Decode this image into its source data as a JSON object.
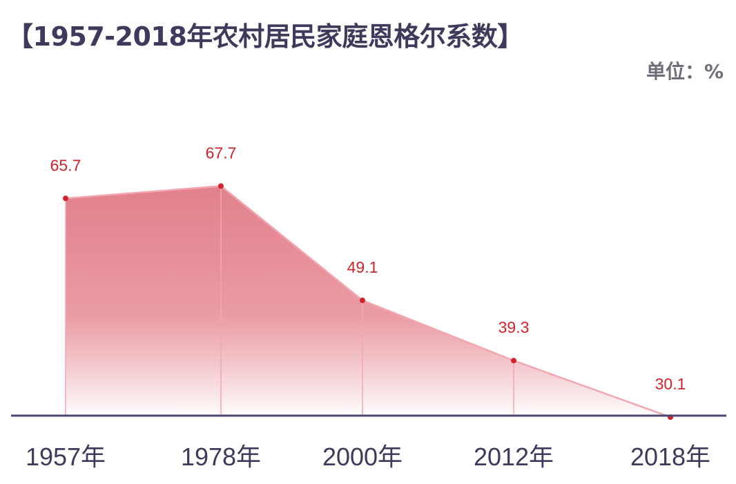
{
  "title": "【1957-2018年农村居民家庭恩格尔系数】",
  "unit_label": "单位：%",
  "colors": {
    "area_top": "#e07a86",
    "area_bottom": "#ffffff",
    "line": "#f2a7b0",
    "point": "#d2232a",
    "axis": "#4a4870",
    "label": "#d2232a",
    "title": "#3d3a5c"
  },
  "chart_data": {
    "type": "area",
    "categories": [
      "1957年",
      "1978年",
      "2000年",
      "2012年",
      "2018年"
    ],
    "values": [
      65.7,
      67.7,
      49.1,
      39.3,
      30.1
    ],
    "value_labels": [
      "65.7",
      "67.7",
      "49.1",
      "39.3",
      "30.1"
    ],
    "title": "【1957-2018年农村居民家庭恩格尔系数】",
    "unit": "单位：%",
    "ylim": [
      0,
      80
    ],
    "grid": false,
    "legend": "none"
  }
}
